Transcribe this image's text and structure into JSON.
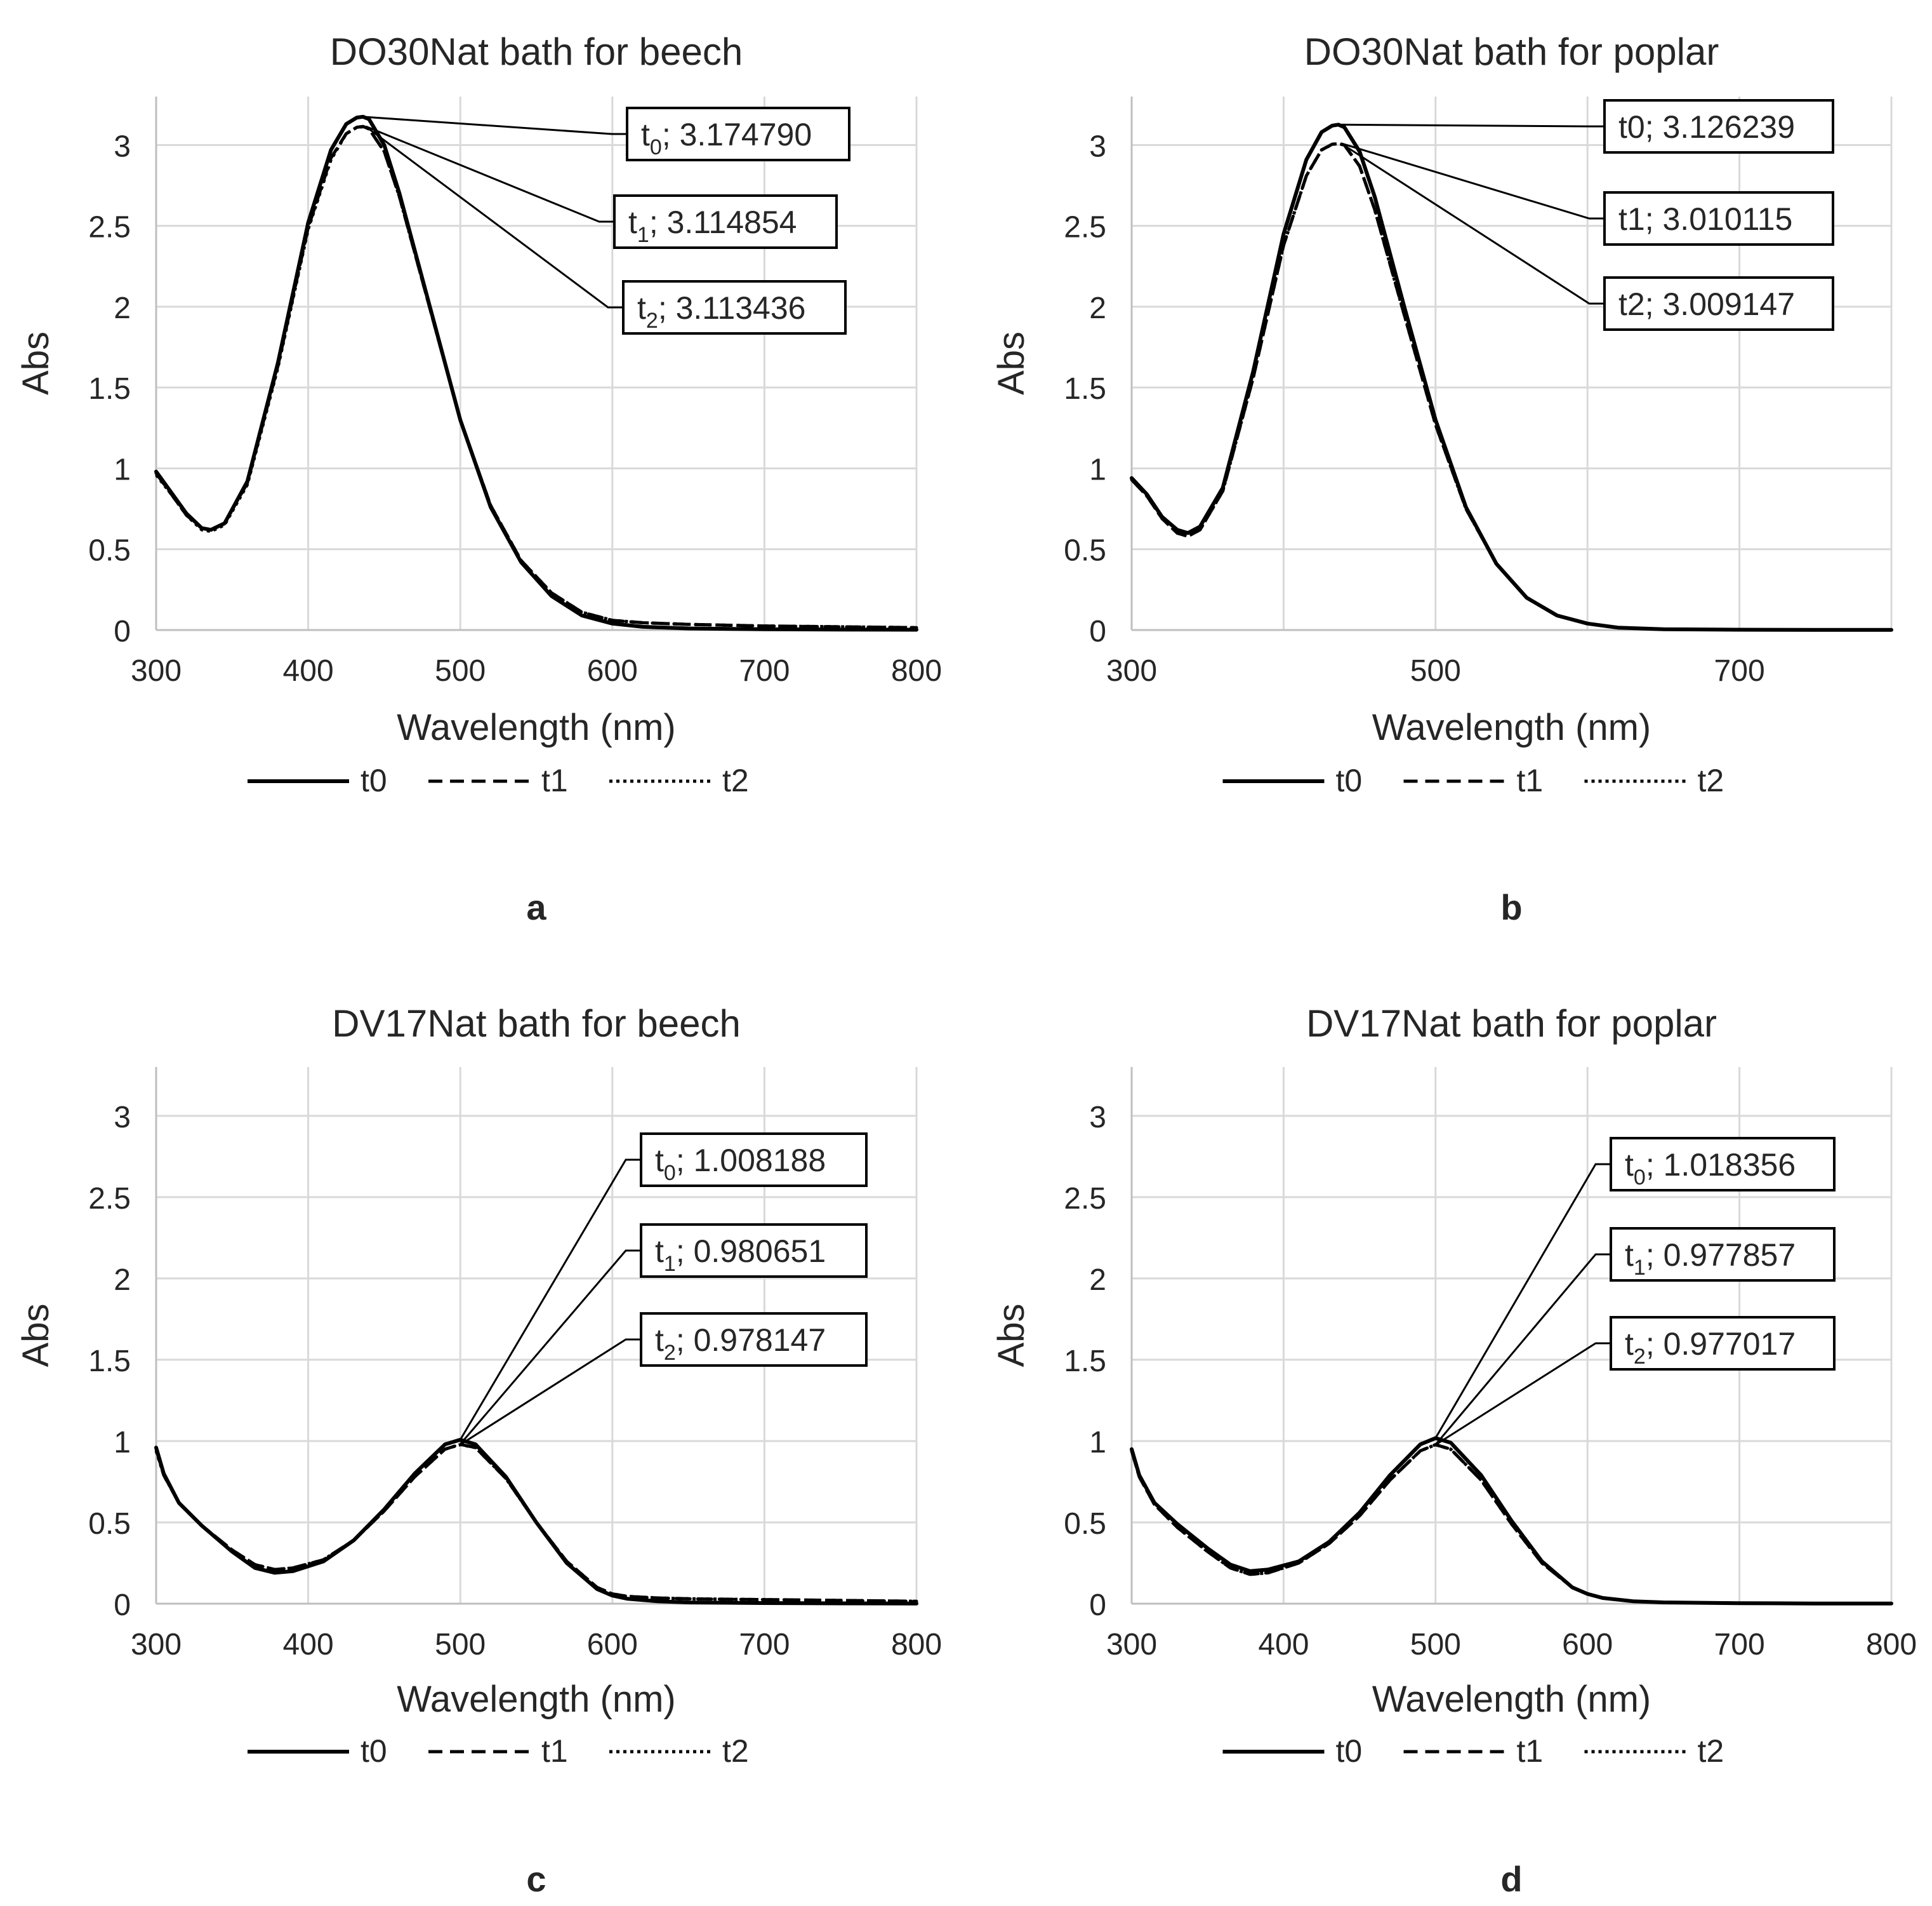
{
  "chart_data": [
    {
      "type": "line",
      "panel_label": "a",
      "title": "DO30Nat bath for beech",
      "xlabel": "Wavelength (nm)",
      "ylabel": "Abs",
      "xlim": [
        300,
        800
      ],
      "ylim": [
        0,
        3.3
      ],
      "xticks": [
        300,
        400,
        500,
        600,
        700,
        800
      ],
      "yticks": [
        0,
        0.5,
        1,
        1.5,
        2,
        2.5,
        3
      ],
      "grid": true,
      "legend": "bottom",
      "series": [
        {
          "name": "t0",
          "style": "solid",
          "x": [
            300,
            310,
            320,
            330,
            336,
            345,
            360,
            380,
            400,
            415,
            425,
            432,
            436,
            440,
            450,
            460,
            480,
            500,
            520,
            540,
            560,
            580,
            600,
            620,
            650,
            700,
            750,
            800
          ],
          "y": [
            0.98,
            0.85,
            0.72,
            0.63,
            0.62,
            0.66,
            0.92,
            1.65,
            2.52,
            2.97,
            3.13,
            3.17,
            3.175,
            3.16,
            3.0,
            2.7,
            2.0,
            1.3,
            0.76,
            0.42,
            0.21,
            0.09,
            0.04,
            0.02,
            0.01,
            0.005,
            0.003,
            0.002
          ]
        },
        {
          "name": "t1",
          "style": "dashed",
          "x": [
            300,
            310,
            320,
            330,
            336,
            345,
            360,
            380,
            400,
            415,
            425,
            432,
            436,
            440,
            450,
            460,
            480,
            500,
            520,
            540,
            560,
            580,
            600,
            620,
            650,
            700,
            750,
            800
          ],
          "y": [
            0.97,
            0.84,
            0.71,
            0.63,
            0.62,
            0.66,
            0.91,
            1.63,
            2.49,
            2.92,
            3.07,
            3.11,
            3.115,
            3.1,
            2.96,
            2.68,
            1.99,
            1.3,
            0.77,
            0.43,
            0.23,
            0.11,
            0.06,
            0.045,
            0.035,
            0.025,
            0.02,
            0.015
          ]
        },
        {
          "name": "t2",
          "style": "dotted",
          "x": [
            300,
            310,
            320,
            330,
            336,
            345,
            360,
            380,
            400,
            415,
            425,
            432,
            436,
            440,
            450,
            460,
            480,
            500,
            520,
            540,
            560,
            580,
            600,
            620,
            650,
            700,
            750,
            800
          ],
          "y": [
            0.96,
            0.84,
            0.71,
            0.62,
            0.61,
            0.65,
            0.9,
            1.62,
            2.48,
            2.91,
            3.07,
            3.11,
            3.113,
            3.1,
            2.96,
            2.68,
            1.99,
            1.3,
            0.77,
            0.43,
            0.23,
            0.11,
            0.06,
            0.045,
            0.035,
            0.025,
            0.02,
            0.015
          ]
        }
      ],
      "annotations": [
        {
          "sub": "0",
          "value": "3.174790",
          "x": 436,
          "y": 3.17479
        },
        {
          "sub": "1",
          "value": "3.114854",
          "x": 438,
          "y": 3.114854
        },
        {
          "sub": "2",
          "value": "3.113436",
          "x": 438,
          "y": 3.113436
        }
      ]
    },
    {
      "type": "line",
      "panel_label": "b",
      "title": "DO30Nat bath for poplar",
      "xlabel": "Wavelength (nm)",
      "ylabel": "Abs",
      "xlim": [
        300,
        800
      ],
      "ylim": [
        0,
        3.3
      ],
      "xticks": [
        300,
        500,
        700
      ],
      "yticks": [
        0,
        0.5,
        1,
        1.5,
        2,
        2.5,
        3
      ],
      "grid": true,
      "legend": "bottom",
      "series": [
        {
          "name": "t0",
          "style": "solid",
          "x": [
            300,
            310,
            320,
            330,
            337,
            345,
            360,
            380,
            400,
            415,
            425,
            432,
            436,
            440,
            450,
            460,
            480,
            500,
            520,
            540,
            560,
            580,
            600,
            620,
            650,
            700,
            750,
            800
          ],
          "y": [
            0.94,
            0.84,
            0.7,
            0.62,
            0.6,
            0.64,
            0.88,
            1.6,
            2.45,
            2.91,
            3.08,
            3.12,
            3.126,
            3.11,
            2.96,
            2.68,
            1.98,
            1.3,
            0.76,
            0.41,
            0.2,
            0.09,
            0.04,
            0.015,
            0.005,
            0.002,
            0.001,
            0.001
          ]
        },
        {
          "name": "t1",
          "style": "dashed",
          "x": [
            300,
            310,
            320,
            330,
            337,
            345,
            360,
            380,
            400,
            415,
            425,
            432,
            436,
            440,
            450,
            460,
            480,
            500,
            520,
            540,
            560,
            580,
            600,
            620,
            650,
            700,
            750,
            800
          ],
          "y": [
            0.93,
            0.83,
            0.69,
            0.6,
            0.58,
            0.62,
            0.86,
            1.56,
            2.38,
            2.81,
            2.97,
            3.005,
            3.01,
            3.0,
            2.87,
            2.6,
            1.93,
            1.27,
            0.75,
            0.41,
            0.2,
            0.09,
            0.04,
            0.015,
            0.005,
            0.002,
            0.001,
            0.001
          ]
        },
        {
          "name": "t2",
          "style": "dotted",
          "x": [
            300,
            310,
            320,
            330,
            337,
            345,
            360,
            380,
            400,
            415,
            425,
            432,
            436,
            440,
            450,
            460,
            480,
            500,
            520,
            540,
            560,
            580,
            600,
            620,
            650,
            700,
            750,
            800
          ],
          "y": [
            0.93,
            0.83,
            0.69,
            0.6,
            0.58,
            0.62,
            0.86,
            1.56,
            2.38,
            2.81,
            2.97,
            3.004,
            3.009,
            3.0,
            2.87,
            2.6,
            1.93,
            1.27,
            0.75,
            0.41,
            0.2,
            0.09,
            0.04,
            0.015,
            0.005,
            0.002,
            0.001,
            0.001
          ]
        }
      ],
      "annotations": [
        {
          "sub": "0",
          "value": "3.126239",
          "x": 436,
          "y": 3.126239,
          "plain": true
        },
        {
          "sub": "1",
          "value": "3.010115",
          "x": 438,
          "y": 3.010115,
          "plain": true
        },
        {
          "sub": "2",
          "value": "3.009147",
          "x": 438,
          "y": 3.009147,
          "plain": true
        }
      ]
    },
    {
      "type": "line",
      "panel_label": "c",
      "title": "DV17Nat bath for beech",
      "xlabel": "Wavelength (nm)",
      "ylabel": "Abs",
      "xlim": [
        300,
        800
      ],
      "ylim": [
        0,
        3.3
      ],
      "xticks": [
        300,
        400,
        500,
        600,
        700,
        800
      ],
      "yticks": [
        0,
        0.5,
        1,
        1.5,
        2,
        2.5,
        3
      ],
      "grid": true,
      "legend": "bottom",
      "series": [
        {
          "name": "t0",
          "style": "solid",
          "x": [
            300,
            305,
            315,
            330,
            350,
            365,
            378,
            390,
            410,
            430,
            450,
            470,
            490,
            500,
            510,
            530,
            550,
            570,
            590,
            600,
            610,
            630,
            650,
            700,
            750,
            800
          ],
          "y": [
            0.96,
            0.8,
            0.62,
            0.48,
            0.32,
            0.22,
            0.19,
            0.2,
            0.26,
            0.39,
            0.58,
            0.8,
            0.98,
            1.008,
            0.98,
            0.78,
            0.5,
            0.25,
            0.09,
            0.05,
            0.03,
            0.015,
            0.008,
            0.004,
            0.002,
            0.001
          ]
        },
        {
          "name": "t1",
          "style": "dashed",
          "x": [
            300,
            305,
            315,
            330,
            350,
            365,
            378,
            390,
            410,
            430,
            450,
            470,
            490,
            500,
            510,
            530,
            550,
            570,
            590,
            600,
            610,
            630,
            650,
            700,
            750,
            800
          ],
          "y": [
            0.95,
            0.79,
            0.62,
            0.48,
            0.33,
            0.24,
            0.21,
            0.22,
            0.27,
            0.39,
            0.57,
            0.78,
            0.95,
            0.98,
            0.96,
            0.77,
            0.5,
            0.26,
            0.1,
            0.06,
            0.045,
            0.035,
            0.03,
            0.025,
            0.02,
            0.015
          ]
        },
        {
          "name": "t2",
          "style": "dotted",
          "x": [
            300,
            305,
            315,
            330,
            350,
            365,
            378,
            390,
            410,
            430,
            450,
            470,
            490,
            500,
            510,
            530,
            550,
            570,
            590,
            600,
            610,
            630,
            650,
            700,
            750,
            800
          ],
          "y": [
            0.94,
            0.79,
            0.62,
            0.48,
            0.33,
            0.24,
            0.21,
            0.22,
            0.27,
            0.39,
            0.57,
            0.78,
            0.95,
            0.978,
            0.96,
            0.77,
            0.5,
            0.26,
            0.1,
            0.06,
            0.045,
            0.035,
            0.03,
            0.025,
            0.02,
            0.015
          ]
        }
      ],
      "annotations": [
        {
          "sub": "0",
          "value": "1.008188",
          "x": 500,
          "y": 1.008188
        },
        {
          "sub": "1",
          "value": "0.980651",
          "x": 500,
          "y": 0.980651
        },
        {
          "sub": "2",
          "value": "0.978147",
          "x": 500,
          "y": 0.978147
        }
      ]
    },
    {
      "type": "line",
      "panel_label": "d",
      "title": "DV17Nat bath for poplar",
      "xlabel": "Wavelength (nm)",
      "ylabel": "Abs",
      "xlim": [
        300,
        800
      ],
      "ylim": [
        0,
        3.3
      ],
      "xticks": [
        300,
        400,
        500,
        600,
        700,
        800
      ],
      "yticks": [
        0,
        0.5,
        1,
        1.5,
        2,
        2.5,
        3
      ],
      "grid": true,
      "legend": "bottom",
      "series": [
        {
          "name": "t0",
          "style": "solid",
          "x": [
            300,
            305,
            315,
            330,
            350,
            365,
            378,
            390,
            410,
            430,
            450,
            470,
            490,
            500,
            510,
            530,
            550,
            570,
            590,
            600,
            610,
            630,
            650,
            700,
            750,
            800
          ],
          "y": [
            0.95,
            0.79,
            0.62,
            0.49,
            0.34,
            0.24,
            0.2,
            0.21,
            0.26,
            0.38,
            0.56,
            0.79,
            0.98,
            1.018,
            0.99,
            0.79,
            0.51,
            0.26,
            0.1,
            0.06,
            0.035,
            0.015,
            0.008,
            0.003,
            0.001,
            0.001
          ]
        },
        {
          "name": "t1",
          "style": "dashed",
          "x": [
            300,
            305,
            315,
            330,
            350,
            365,
            378,
            390,
            410,
            430,
            450,
            470,
            490,
            500,
            510,
            530,
            550,
            570,
            590,
            600,
            610,
            630,
            650,
            700,
            750,
            800
          ],
          "y": [
            0.94,
            0.78,
            0.61,
            0.47,
            0.32,
            0.22,
            0.18,
            0.19,
            0.25,
            0.37,
            0.54,
            0.76,
            0.94,
            0.978,
            0.95,
            0.76,
            0.49,
            0.25,
            0.1,
            0.06,
            0.035,
            0.015,
            0.008,
            0.003,
            0.001,
            0.001
          ]
        },
        {
          "name": "t2",
          "style": "dotted",
          "x": [
            300,
            305,
            315,
            330,
            350,
            365,
            378,
            390,
            410,
            430,
            450,
            470,
            490,
            500,
            510,
            530,
            550,
            570,
            590,
            600,
            610,
            630,
            650,
            700,
            750,
            800
          ],
          "y": [
            0.94,
            0.78,
            0.61,
            0.47,
            0.32,
            0.22,
            0.18,
            0.19,
            0.25,
            0.37,
            0.54,
            0.76,
            0.94,
            0.977,
            0.95,
            0.76,
            0.49,
            0.25,
            0.1,
            0.06,
            0.035,
            0.015,
            0.008,
            0.003,
            0.001,
            0.001
          ]
        }
      ],
      "annotations": [
        {
          "sub": "0",
          "value": "1.018356",
          "x": 500,
          "y": 1.018356
        },
        {
          "sub": "1",
          "value": "0.977857",
          "x": 500,
          "y": 0.977857
        },
        {
          "sub": "2",
          "value": "0.977017",
          "x": 500,
          "y": 0.977017
        }
      ]
    }
  ]
}
